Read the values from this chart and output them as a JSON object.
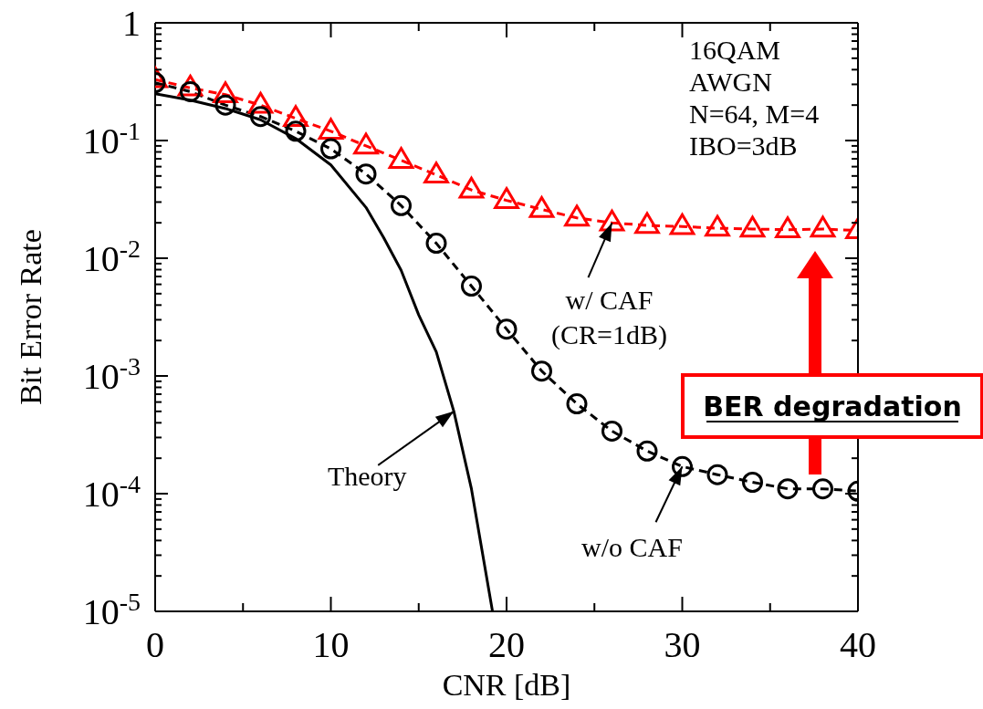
{
  "chart_data": {
    "type": "line",
    "xlabel": "CNR [dB]",
    "ylabel": "Bit Error Rate",
    "log": "y",
    "xlim": [
      0,
      40
    ],
    "xticks": [
      0,
      {
        "value": 5,
        "label": null
      },
      10,
      {
        "value": 15,
        "label": null
      },
      20,
      {
        "value": 25,
        "label": null
      },
      30,
      {
        "value": 35,
        "label": null
      },
      40
    ],
    "ylim": [
      1e-05,
      1
    ],
    "yticks": [
      {
        "value": 1e-05,
        "label": "10$^{-5}$"
      },
      {
        "value": 2e-05,
        "label": null
      },
      {
        "value": 3e-05,
        "label": null
      },
      {
        "value": 4e-05,
        "label": null
      },
      {
        "value": 5e-05,
        "label": null
      },
      {
        "value": 6e-05,
        "label": null
      },
      {
        "value": 7e-05,
        "label": null
      },
      {
        "value": 8e-05,
        "label": null
      },
      {
        "value": 9e-05,
        "label": null
      },
      {
        "value": 0.0001,
        "label": "10$^{-4}$"
      },
      {
        "value": 0.0002,
        "label": null
      },
      {
        "value": 0.0003,
        "label": null
      },
      {
        "value": 0.0004,
        "label": null
      },
      {
        "value": 0.0005,
        "label": null
      },
      {
        "value": 0.0006,
        "label": null
      },
      {
        "value": 0.0007,
        "label": null
      },
      {
        "value": 0.0008,
        "label": null
      },
      {
        "value": 0.0009,
        "label": null
      },
      {
        "value": 0.001,
        "label": "10$^{-3}$"
      },
      {
        "value": 0.002,
        "label": null
      },
      {
        "value": 0.003,
        "label": null
      },
      {
        "value": 0.004,
        "label": null
      },
      {
        "value": 0.005,
        "label": null
      },
      {
        "value": 0.006,
        "label": null
      },
      {
        "value": 0.007,
        "label": null
      },
      {
        "value": 0.008,
        "label": null
      },
      {
        "value": 0.009,
        "label": null
      },
      {
        "value": 0.01,
        "label": "10$^{-2}$"
      },
      {
        "value": 0.02,
        "label": null
      },
      {
        "value": 0.03,
        "label": null
      },
      {
        "value": 0.04,
        "label": null
      },
      {
        "value": 0.05,
        "label": null
      },
      {
        "value": 0.06,
        "label": null
      },
      {
        "value": 0.07,
        "label": null
      },
      {
        "value": 0.08,
        "label": null
      },
      {
        "value": 0.09,
        "label": null
      },
      {
        "value": 0.1,
        "label": "10$^{-1}$"
      },
      {
        "value": 0.2,
        "label": null
      },
      {
        "value": 0.3,
        "label": null
      },
      {
        "value": 0.4,
        "label": null
      },
      {
        "value": 0.5,
        "label": null
      },
      {
        "value": 0.6,
        "label": null
      },
      {
        "value": 0.7,
        "label": null
      },
      {
        "value": 0.8,
        "label": null
      },
      {
        "value": 0.9,
        "label": null
      },
      1
    ],
    "series": [
      {
        "color": "#ff0000",
        "marker": "triangle",
        "line_style": "dashed",
        "x": [
          0,
          2,
          4,
          6,
          8,
          10,
          12,
          14,
          16,
          18,
          20,
          22,
          24,
          26,
          28,
          30,
          32,
          34,
          36,
          38,
          40
        ],
        "values": [
          0.33,
          0.28,
          0.245,
          0.2,
          0.154,
          0.12,
          0.09,
          0.068,
          0.051,
          0.038,
          0.031,
          0.026,
          0.022,
          0.02,
          0.019,
          0.0186,
          0.018,
          0.0177,
          0.0175,
          0.0177,
          0.0172
        ]
      },
      {
        "color": "#000000",
        "marker": "circle",
        "line_style": "dashed",
        "x": [
          0,
          2,
          4,
          6,
          8,
          10,
          12,
          14,
          16,
          18,
          20,
          22,
          24,
          26,
          28,
          30,
          32,
          34,
          36,
          38,
          40
        ],
        "values": [
          0.31,
          0.26,
          0.2,
          0.16,
          0.12,
          0.085,
          0.052,
          0.028,
          0.0134,
          0.0058,
          0.0025,
          0.0011,
          0.00058,
          0.00034,
          0.00023,
          0.00017,
          0.000145,
          0.000125,
          0.00011,
          0.00011,
          0.000105
        ]
      },
      {
        "color": "#000000",
        "marker": "none",
        "line_style": "solid",
        "x": [
          0,
          2,
          4,
          6,
          8,
          10,
          12,
          13,
          14,
          15,
          16,
          17,
          18,
          19.2
        ],
        "values": [
          0.25,
          0.22,
          0.187,
          0.15,
          0.104,
          0.062,
          0.027,
          0.015,
          0.0079,
          0.0033,
          0.0016,
          0.0005,
          0.00011,
          1e-05
        ]
      }
    ],
    "annotations": [
      "16QAM\nAWGN\nN=64,  M=4\nIBO=3dB",
      {
        "text": "w/ CAF\n(CR=1dB)",
        "x": 26,
        "y": 0.02
      },
      {
        "text": "w/o CAF",
        "x": 30,
        "y": 0.00017
      },
      {
        "text": "Theory",
        "x": 17,
        "y": 0.0005
      },
      "BER degradation"
    ]
  }
}
